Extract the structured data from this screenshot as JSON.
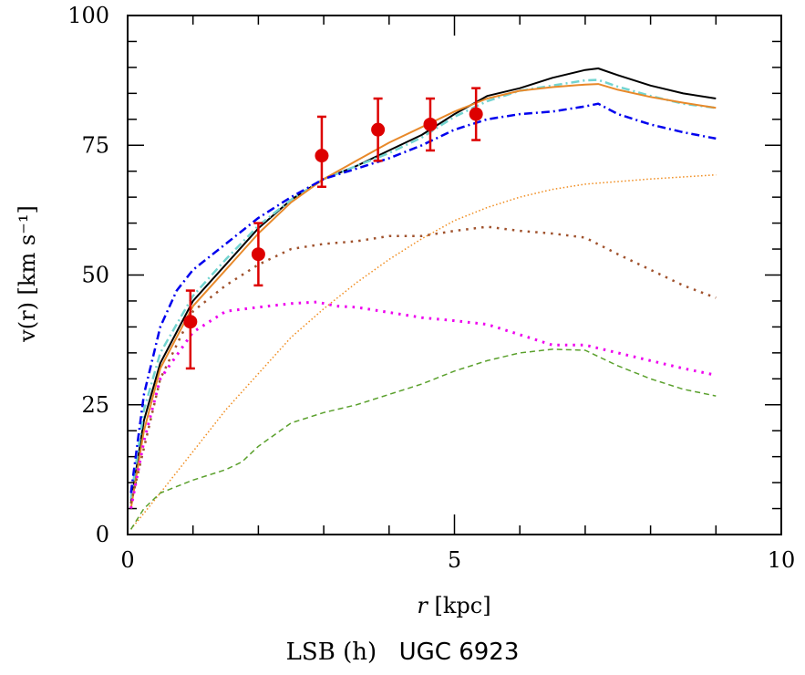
{
  "chart_data": {
    "type": "line",
    "title": "",
    "xlabel": "r [kpc]",
    "ylabel": "v(r) [km s⁻¹]",
    "xlim": [
      0,
      10
    ],
    "ylim": [
      0,
      100
    ],
    "xticks": [
      0,
      5,
      10
    ],
    "yticks": [
      0,
      25,
      50,
      75,
      100
    ],
    "x_minor_step": 1,
    "y_minor_step": 5,
    "grid": false,
    "caption": {
      "label": "LSB (h)",
      "galaxy": "UGC 6923"
    },
    "observed": {
      "color": "#dd0000",
      "points": [
        {
          "x": 0.96,
          "y": 41,
          "lo": 32,
          "hi": 47
        },
        {
          "x": 2.0,
          "y": 54,
          "lo": 48,
          "hi": 60
        },
        {
          "x": 2.97,
          "y": 73,
          "lo": 67,
          "hi": 80.5
        },
        {
          "x": 3.83,
          "y": 78,
          "lo": 72,
          "hi": 84
        },
        {
          "x": 4.63,
          "y": 79,
          "lo": 74,
          "hi": 84
        },
        {
          "x": 5.33,
          "y": 81,
          "lo": 76,
          "hi": 86
        }
      ]
    },
    "series": [
      {
        "color": "#000000",
        "style": "solid",
        "width": 2,
        "x": [
          0.05,
          0.25,
          0.5,
          1,
          1.5,
          2,
          2.5,
          3,
          3.5,
          4,
          4.5,
          5,
          5.5,
          6,
          6.5,
          7,
          7.2,
          7.5,
          8,
          8.5,
          9
        ],
        "y": [
          6,
          22,
          33,
          45,
          52,
          59,
          64.5,
          68.5,
          71,
          74,
          77,
          81,
          84.5,
          86,
          88,
          89.5,
          89.8,
          88.5,
          86.5,
          85,
          84
        ]
      },
      {
        "color": "#72d4d0",
        "style": "dashdot",
        "width": 2.5,
        "x": [
          0.05,
          0.25,
          0.5,
          1,
          1.5,
          2,
          2.5,
          3,
          3.5,
          4,
          4.5,
          5,
          5.5,
          6,
          6.5,
          7,
          7.2,
          7.5,
          8,
          8.5,
          9
        ],
        "y": [
          7,
          24,
          35,
          46,
          53,
          59.5,
          64.5,
          68.5,
          71,
          73.5,
          76.5,
          80.5,
          83.5,
          85.5,
          86.5,
          87.5,
          87.6,
          86.3,
          84.5,
          83,
          82.2
        ]
      },
      {
        "color": "#e8892a",
        "style": "solid",
        "width": 2,
        "x": [
          0.05,
          0.25,
          0.5,
          1,
          1.5,
          2,
          2.5,
          3,
          3.5,
          4,
          4.5,
          5,
          5.5,
          6,
          6.5,
          7,
          7.2,
          7.5,
          8,
          8.5,
          9
        ],
        "y": [
          5,
          20,
          32,
          44,
          51,
          58,
          64,
          68.5,
          72,
          75.5,
          78.5,
          81.5,
          84,
          85.5,
          86.2,
          86.7,
          86.8,
          85.7,
          84.3,
          83.2,
          82.2
        ]
      },
      {
        "color": "#0000ee",
        "style": "dashdot",
        "width": 2.5,
        "x": [
          0.05,
          0.25,
          0.5,
          0.75,
          1,
          1.5,
          2,
          2.5,
          3,
          3.5,
          4,
          4.5,
          5,
          5.5,
          6,
          6.5,
          7,
          7.2,
          7.5,
          8,
          8.5,
          9
        ],
        "y": [
          8,
          27,
          40,
          47,
          51,
          56,
          61,
          65,
          68.5,
          70.5,
          72.5,
          75,
          78,
          80,
          81,
          81.5,
          82.5,
          83,
          81,
          79,
          77.5,
          76.3
        ]
      },
      {
        "color": "#a0522d",
        "style": "dotted",
        "width": 2.5,
        "x": [
          0.05,
          0.5,
          1,
          1.5,
          2,
          2.5,
          3,
          3.5,
          4,
          4.5,
          5,
          5.5,
          6,
          6.5,
          7,
          7.5,
          8,
          8.5,
          9
        ],
        "y": [
          6,
          30,
          43,
          48,
          52,
          55,
          56,
          56.5,
          57.5,
          57.5,
          58.5,
          59.3,
          58.5,
          58,
          57.2,
          54,
          51,
          48,
          45.6
        ]
      },
      {
        "color": "#ee00ee",
        "style": "dotted",
        "width": 3,
        "x": [
          0.05,
          0.25,
          0.5,
          1,
          1.5,
          2,
          2.5,
          2.9,
          3.2,
          3.5,
          4,
          4.5,
          5,
          5.5,
          6,
          6.5,
          7,
          7.5,
          8,
          8.5,
          9
        ],
        "y": [
          5,
          18,
          30,
          39,
          43,
          43.8,
          44.5,
          44.8,
          44,
          43.8,
          42.8,
          41.8,
          41.2,
          40.5,
          38.5,
          36.5,
          36.5,
          35,
          33.5,
          32,
          30.7
        ]
      },
      {
        "color": "#f08c1e",
        "style": "finedot",
        "width": 1.5,
        "x": [
          0.05,
          0.5,
          1,
          1.5,
          2,
          2.5,
          3,
          3.5,
          4,
          4.5,
          5,
          5.5,
          6,
          6.5,
          7,
          8,
          9
        ],
        "y": [
          1,
          8,
          16,
          24,
          31,
          38,
          43.5,
          48.5,
          53,
          57,
          60.5,
          63,
          65,
          66.5,
          67.5,
          68.5,
          69.3
        ]
      },
      {
        "color": "#5aa02c",
        "style": "dashed",
        "width": 1.5,
        "x": [
          0.05,
          0.25,
          0.5,
          1,
          1.5,
          1.75,
          2,
          2.5,
          3,
          3.5,
          4,
          4.5,
          5,
          5.5,
          6,
          6.5,
          7,
          7.5,
          8,
          8.5,
          9
        ],
        "y": [
          1,
          5,
          8,
          10.5,
          12.5,
          14,
          17,
          21.5,
          23.5,
          25,
          27,
          29,
          31.5,
          33.5,
          35,
          35.7,
          35.5,
          32.5,
          30,
          28,
          26.7
        ]
      }
    ]
  }
}
